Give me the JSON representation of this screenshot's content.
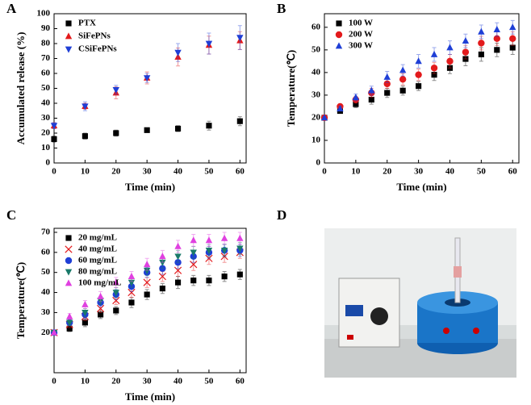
{
  "chart_data": [
    {
      "type": "scatter",
      "panel_label": "A",
      "x_label": "Time (min)",
      "y_label": "Accumulated release (%)",
      "x": [
        0,
        10,
        20,
        30,
        40,
        50,
        60
      ],
      "xlim": [
        0,
        62
      ],
      "ylim": [
        0,
        100
      ],
      "xticks": [
        0,
        10,
        20,
        30,
        40,
        50,
        60
      ],
      "yticks": [
        0,
        10,
        20,
        30,
        40,
        50,
        60,
        70,
        80,
        90,
        100
      ],
      "series": [
        {
          "name": "PTX",
          "color": "#000000",
          "marker": "square",
          "values": [
            16,
            18,
            20,
            22,
            23,
            25,
            28
          ],
          "errors": [
            2,
            2,
            2,
            1.5,
            2,
            3,
            3
          ]
        },
        {
          "name": "SiFePNs",
          "color": "#e31a1c",
          "marker": "triangle-up",
          "values": [
            25,
            38,
            47,
            57,
            71,
            79,
            82
          ],
          "errors": [
            2,
            2,
            4,
            4,
            6,
            6,
            6
          ]
        },
        {
          "name": "CSiFePNs",
          "color": "#1f3fd6",
          "marker": "triangle-down",
          "values": [
            25,
            38,
            49,
            57,
            74,
            80,
            84
          ],
          "errors": [
            2,
            3,
            3,
            3,
            6,
            7,
            8
          ]
        }
      ]
    },
    {
      "type": "scatter",
      "panel_label": "B",
      "x_label": "Time (min)",
      "y_label": "Temperature(℃)",
      "x": [
        0,
        5,
        10,
        15,
        20,
        25,
        30,
        35,
        40,
        45,
        50,
        55,
        60
      ],
      "xlim": [
        0,
        62
      ],
      "ylim": [
        0,
        66
      ],
      "xticks": [
        0,
        10,
        20,
        30,
        40,
        50,
        60
      ],
      "yticks": [
        0,
        10,
        20,
        30,
        40,
        50,
        60
      ],
      "series": [
        {
          "name": "100 W",
          "color": "#000000",
          "marker": "square",
          "values": [
            20,
            23,
            26,
            28,
            31,
            32,
            34,
            39,
            42,
            46,
            48,
            50,
            51
          ],
          "errors": [
            0.5,
            1,
            1.5,
            2,
            2,
            2,
            2,
            2.5,
            2.5,
            3,
            3,
            3,
            3
          ]
        },
        {
          "name": "200 W",
          "color": "#e31a1c",
          "marker": "circle",
          "values": [
            20,
            25,
            28,
            31,
            35,
            37,
            39,
            42,
            45,
            49,
            53,
            55,
            55
          ],
          "errors": [
            0.5,
            1,
            1.5,
            2,
            2,
            2.5,
            2.5,
            2.5,
            3,
            3,
            3,
            3,
            3
          ]
        },
        {
          "name": "300 W",
          "color": "#1f3fd6",
          "marker": "triangle-up",
          "values": [
            20,
            24,
            29,
            32,
            38,
            41,
            45,
            48,
            51,
            54,
            58,
            59,
            60
          ],
          "errors": [
            0.5,
            1,
            1.5,
            2,
            2.5,
            2.5,
            3,
            3,
            3,
            3,
            3,
            3,
            3
          ]
        }
      ]
    },
    {
      "type": "scatter",
      "panel_label": "C",
      "x_label": "Time (min)",
      "y_label": "Temperature(℃)",
      "x": [
        0,
        5,
        10,
        15,
        20,
        25,
        30,
        35,
        40,
        45,
        50,
        55,
        60
      ],
      "xlim": [
        0,
        62
      ],
      "ylim": [
        0,
        72
      ],
      "xticks": [
        0,
        10,
        20,
        30,
        40,
        50,
        60
      ],
      "yticks": [
        20,
        30,
        40,
        50,
        60,
        70
      ],
      "series": [
        {
          "name": "20 mg/mL",
          "color": "#000000",
          "marker": "square",
          "values": [
            20,
            22,
            25,
            29,
            31,
            35,
            39,
            42,
            45,
            46,
            46,
            48,
            49
          ],
          "errors": [
            0.5,
            1.5,
            2,
            2,
            2,
            2.5,
            2.5,
            2.5,
            3,
            2.5,
            2.5,
            2.5,
            2.5
          ]
        },
        {
          "name": "40 mg/mL",
          "color": "#e31a1c",
          "marker": "cross",
          "values": [
            20,
            24,
            28,
            32,
            36,
            40,
            45,
            48,
            51,
            54,
            57,
            58,
            60
          ],
          "errors": [
            0.5,
            1.5,
            2,
            2,
            2,
            2.5,
            2.5,
            2.5,
            3,
            3,
            3,
            3,
            3
          ]
        },
        {
          "name": "60 mg/mL",
          "color": "#1f3fd6",
          "marker": "circle",
          "values": [
            20,
            25,
            29,
            35,
            39,
            43,
            50,
            52,
            55,
            58,
            60,
            61,
            61
          ],
          "errors": [
            0.5,
            1.5,
            2,
            2,
            2.5,
            2.5,
            2.5,
            3,
            3,
            3,
            3,
            3,
            3
          ]
        },
        {
          "name": "80 mg/mL",
          "color": "#1a7a6a",
          "marker": "triangle-down",
          "values": [
            20,
            25,
            30,
            36,
            40,
            45,
            51,
            55,
            58,
            60,
            61,
            61,
            62
          ],
          "errors": [
            0.5,
            1.5,
            2,
            2,
            2.5,
            2.5,
            2.5,
            3,
            3,
            3,
            3,
            3,
            3
          ]
        },
        {
          "name": "100 mg/mL",
          "color": "#e040e0",
          "marker": "triangle-up",
          "values": [
            20,
            28,
            34,
            38,
            45,
            48,
            54,
            58,
            63,
            66,
            66,
            67,
            67
          ],
          "errors": [
            0.5,
            1.5,
            2,
            2.5,
            2.5,
            2.5,
            3,
            3,
            3,
            3,
            3,
            3,
            3
          ]
        }
      ]
    }
  ],
  "photo": {
    "panel_label": "D"
  }
}
